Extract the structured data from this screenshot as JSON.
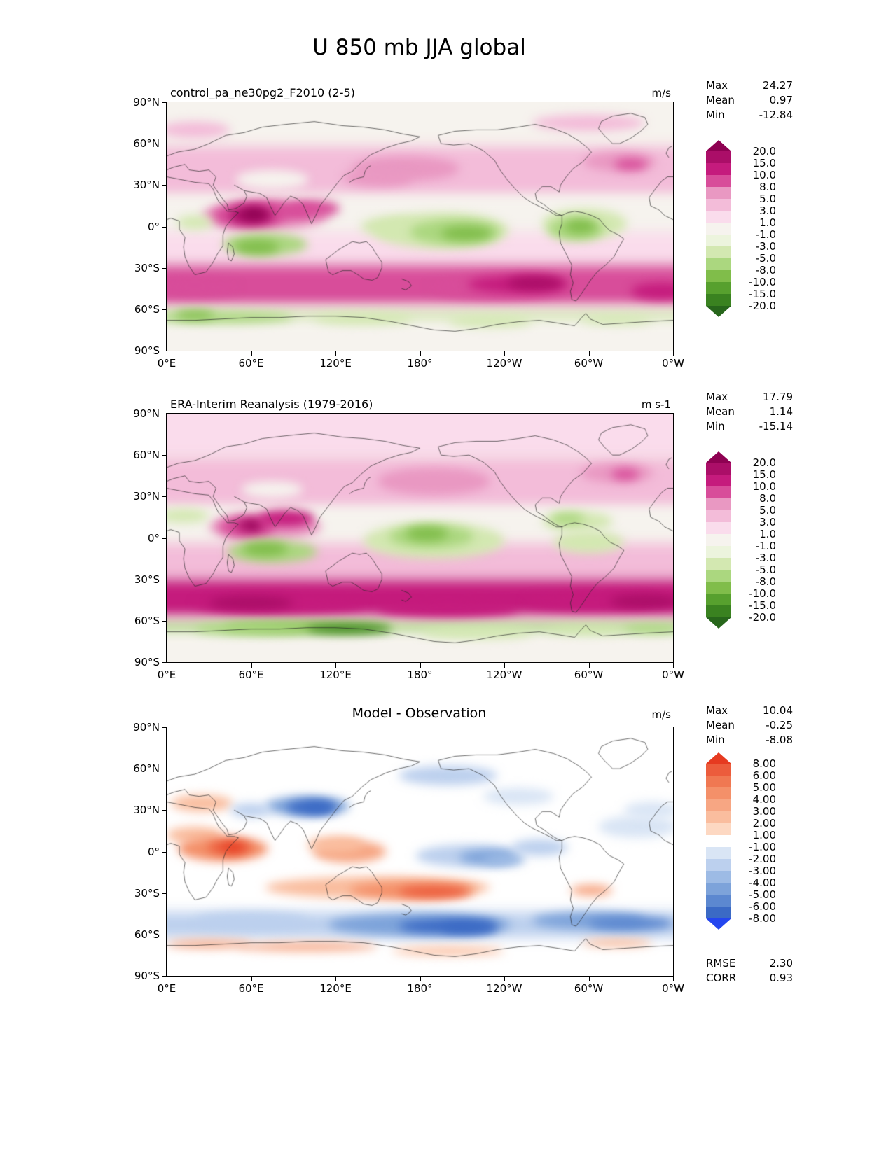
{
  "page_title": "U 850 mb JJA global",
  "axes": {
    "x_ticks": [
      "0°E",
      "60°E",
      "120°E",
      "180°",
      "120°W",
      "60°W",
      "0°W"
    ],
    "y_ticks": [
      "90°N",
      "60°N",
      "30°N",
      "0°",
      "30°S",
      "60°S",
      "90°S"
    ]
  },
  "panels": [
    {
      "title": "control_pa_ne30pg2_F2010 (2-5)",
      "units": "m/s",
      "stats": [
        {
          "label": "Max",
          "value": "24.27"
        },
        {
          "label": "Mean",
          "value": "0.97"
        },
        {
          "label": "Min",
          "value": "-12.84"
        }
      ],
      "colorbar": 0
    },
    {
      "title": "ERA-Interim Reanalysis (1979-2016)",
      "units": "m s-1",
      "stats": [
        {
          "label": "Max",
          "value": "17.79"
        },
        {
          "label": "Mean",
          "value": "1.14"
        },
        {
          "label": "Min",
          "value": "-15.14"
        }
      ],
      "colorbar": 0
    },
    {
      "title": "Model - Observation",
      "units": "m/s",
      "stats": [
        {
          "label": "Max",
          "value": "10.04"
        },
        {
          "label": "Mean",
          "value": "-0.25"
        },
        {
          "label": "Min",
          "value": "-8.08"
        }
      ],
      "colorbar": 1
    }
  ],
  "footer_stats": [
    {
      "label": "RMSE",
      "value": "2.30"
    },
    {
      "label": "CORR",
      "value": "0.93"
    }
  ],
  "colorbars": [
    {
      "labels": [
        "20.0",
        "15.0",
        "10.0",
        "8.0",
        "5.0",
        "3.0",
        "1.0",
        "-1.0",
        "-3.0",
        "-5.0",
        "-8.0",
        "-10.0",
        "-15.0",
        "-20.0"
      ],
      "levels": [
        20,
        15,
        10,
        8,
        5,
        3,
        1,
        -1,
        -3,
        -5,
        -8,
        -10,
        -15,
        -20
      ],
      "colors": [
        "#8e0152",
        "#ab0e68",
        "#c51b7d",
        "#d84d9a",
        "#e998c2",
        "#f3bcd9",
        "#fadcec",
        "#f6f3ee",
        "#ecf4dd",
        "#d3e8b1",
        "#abd77f",
        "#80bd4a",
        "#57a02e",
        "#3a8220",
        "#27661b"
      ]
    },
    {
      "labels": [
        "8.00",
        "6.00",
        "5.00",
        "4.00",
        "3.00",
        "2.00",
        "1.00",
        "-1.00",
        "-2.00",
        "-3.00",
        "-4.00",
        "-5.00",
        "-6.00",
        "-8.00"
      ],
      "levels": [
        8,
        6,
        5,
        4,
        3,
        2,
        1,
        -1,
        -2,
        -3,
        -4,
        -5,
        -6,
        -8
      ],
      "colors": [
        "#e63a20",
        "#ec5c3c",
        "#f07852",
        "#f49069",
        "#f7a683",
        "#fabd9e",
        "#fdd8c2",
        "#ffffff",
        "#d9e5f5",
        "#bcd0ee",
        "#9dbbe5",
        "#7da3da",
        "#5c88d0",
        "#3b6ac5",
        "#2446ef"
      ]
    }
  ],
  "chart_data": [
    {
      "type": "heatmap",
      "name": "model-field",
      "title": "control_pa_ne30pg2_F2010 (2-5)",
      "units": "m/s",
      "max": 24.27,
      "mean": 0.97,
      "min": -12.84,
      "colorbar": 0,
      "base": 1,
      "features": [
        [
          "band",
          90,
          58,
          1
        ],
        [
          "band",
          58,
          22,
          4
        ],
        [
          "band",
          22,
          -4,
          1
        ],
        [
          "band",
          -4,
          -28,
          3
        ],
        [
          "band",
          -28,
          -58,
          9
        ],
        [
          "band",
          -58,
          -62,
          1
        ],
        [
          "band",
          -62,
          -70,
          -4
        ],
        [
          "band",
          -70,
          -90,
          1
        ],
        [
          "blob",
          75,
          34,
          26,
          7,
          0
        ],
        [
          "blob",
          20,
          70,
          25,
          6,
          4
        ],
        [
          "blob",
          300,
          75,
          40,
          6,
          4
        ],
        [
          "blob",
          170,
          42,
          38,
          9,
          6
        ],
        [
          "blob",
          150,
          35,
          25,
          6,
          6
        ],
        [
          "blob",
          322,
          47,
          26,
          7,
          6
        ],
        [
          "blob",
          330,
          45,
          12,
          4,
          9
        ],
        [
          "blob",
          70,
          8,
          45,
          11,
          6
        ],
        [
          "blob",
          58,
          8,
          26,
          9,
          9
        ],
        [
          "blob",
          75,
          11,
          30,
          7,
          9
        ],
        [
          "blob",
          60,
          8,
          16,
          6,
          16
        ],
        [
          "blob",
          62,
          9,
          9,
          4,
          21
        ],
        [
          "blob",
          105,
          13,
          18,
          6,
          9
        ],
        [
          "blob",
          20,
          3,
          13,
          5,
          -4
        ],
        [
          "blob",
          70,
          -13,
          30,
          8,
          -6
        ],
        [
          "blob",
          64,
          -15,
          16,
          5,
          -9
        ],
        [
          "blob",
          160,
          0,
          22,
          7,
          -4
        ],
        [
          "blob",
          195,
          -3,
          48,
          13,
          -4
        ],
        [
          "blob",
          205,
          -4,
          32,
          9,
          -6
        ],
        [
          "blob",
          213,
          -5,
          18,
          5,
          -9
        ],
        [
          "blob",
          297,
          2,
          30,
          11,
          -4
        ],
        [
          "blob",
          291,
          -2,
          20,
          8,
          -6
        ],
        [
          "blob",
          294,
          0,
          11,
          5,
          -9
        ],
        [
          "blob",
          20,
          -44,
          30,
          6,
          9
        ],
        [
          "blob",
          235,
          -44,
          48,
          8,
          9
        ],
        [
          "blob",
          250,
          -42,
          36,
          6,
          11
        ],
        [
          "blob",
          262,
          -41,
          20,
          5,
          16
        ],
        [
          "blob",
          352,
          -47,
          22,
          6,
          11
        ],
        [
          "blob",
          40,
          -66,
          50,
          4,
          -6
        ],
        [
          "blob",
          20,
          -64,
          14,
          3,
          -9
        ],
        [
          "blob",
          140,
          -67,
          35,
          4,
          -4
        ],
        [
          "blob",
          230,
          -69,
          30,
          4,
          -4
        ],
        [
          "blob",
          320,
          -68,
          25,
          3,
          -4
        ]
      ]
    },
    {
      "type": "heatmap",
      "name": "era-interim-field",
      "title": "ERA-Interim Reanalysis (1979-2016)",
      "units": "m s-1",
      "max": 17.79,
      "mean": 1.14,
      "min": -15.14,
      "colorbar": 0,
      "base": 1,
      "features": [
        [
          "band",
          90,
          58,
          2
        ],
        [
          "band",
          58,
          22,
          4
        ],
        [
          "band",
          22,
          -4,
          1
        ],
        [
          "band",
          -4,
          -30,
          4
        ],
        [
          "band",
          -30,
          -58,
          11
        ],
        [
          "band",
          -58,
          -62,
          2
        ],
        [
          "band",
          -62,
          -70,
          -6
        ],
        [
          "band",
          -70,
          -90,
          1
        ],
        [
          "blob",
          75,
          35,
          22,
          6,
          0
        ],
        [
          "blob",
          190,
          41,
          40,
          10,
          6
        ],
        [
          "blob",
          320,
          47,
          26,
          7,
          6
        ],
        [
          "blob",
          326,
          46,
          10,
          4,
          9
        ],
        [
          "blob",
          70,
          8,
          40,
          10,
          6
        ],
        [
          "blob",
          57,
          8,
          20,
          8,
          9
        ],
        [
          "blob",
          59,
          9,
          10,
          4,
          16
        ],
        [
          "blob",
          61,
          9,
          5,
          2,
          21
        ],
        [
          "blob",
          85,
          14,
          20,
          6,
          11
        ],
        [
          "blob",
          12,
          16,
          18,
          5,
          -4
        ],
        [
          "blob",
          292,
          12,
          25,
          7,
          -4
        ],
        [
          "blob",
          285,
          14,
          12,
          4,
          -6
        ],
        [
          "blob",
          190,
          -2,
          50,
          13,
          -4
        ],
        [
          "blob",
          188,
          1,
          30,
          8,
          -6
        ],
        [
          "blob",
          185,
          3,
          15,
          5,
          -9
        ],
        [
          "blob",
          75,
          -10,
          32,
          8,
          -6
        ],
        [
          "blob",
          70,
          -8,
          16,
          5,
          -9
        ],
        [
          "blob",
          300,
          -3,
          25,
          8,
          -4
        ],
        [
          "blob",
          80,
          -48,
          60,
          6,
          13
        ],
        [
          "blob",
          60,
          -47,
          30,
          5,
          16
        ],
        [
          "blob",
          200,
          -51,
          50,
          6,
          11
        ],
        [
          "blob",
          300,
          -46,
          45,
          6,
          13
        ],
        [
          "blob",
          340,
          -46,
          25,
          5,
          16
        ],
        [
          "blob",
          100,
          -65,
          60,
          4,
          -9
        ],
        [
          "blob",
          130,
          -66,
          30,
          3,
          -16
        ],
        [
          "blob",
          60,
          -66,
          40,
          4,
          -6
        ],
        [
          "blob",
          220,
          -69,
          40,
          4,
          -4
        ],
        [
          "blob",
          300,
          -67,
          30,
          3,
          -4
        ],
        [
          "blob",
          345,
          -66,
          20,
          3,
          -6
        ]
      ]
    },
    {
      "type": "heatmap",
      "name": "model-minus-observation-field",
      "title": "Model - Observation",
      "units": "m/s",
      "max": 10.04,
      "mean": -0.25,
      "min": -8.08,
      "rmse": 2.3,
      "corr": 0.93,
      "colorbar": 1,
      "base": 0,
      "features": [
        [
          "band",
          -44,
          -62,
          -2.5
        ],
        [
          "blob",
          25,
          35,
          22,
          6,
          2.5
        ],
        [
          "blob",
          20,
          12,
          20,
          6,
          2.5
        ],
        [
          "blob",
          40,
          2,
          32,
          9,
          4.5
        ],
        [
          "blob",
          45,
          3,
          16,
          5,
          6.5
        ],
        [
          "blob",
          47,
          3,
          8,
          3,
          9
        ],
        [
          "blob",
          130,
          0,
          26,
          8,
          3.5
        ],
        [
          "blob",
          120,
          5,
          20,
          6,
          2.5
        ],
        [
          "blob",
          150,
          -26,
          80,
          8,
          2.5
        ],
        [
          "blob",
          175,
          -28,
          45,
          6,
          4.5
        ],
        [
          "blob",
          190,
          -29,
          25,
          4,
          6.5
        ],
        [
          "blob",
          302,
          -28,
          15,
          4,
          3.5
        ],
        [
          "blob",
          100,
          -69,
          50,
          3,
          3.5
        ],
        [
          "blob",
          200,
          -72,
          40,
          3,
          2.5
        ],
        [
          "blob",
          320,
          -66,
          25,
          3,
          2.5
        ],
        [
          "blob",
          30,
          -67,
          30,
          3,
          3.5
        ],
        [
          "blob",
          100,
          33,
          30,
          7,
          -4.5
        ],
        [
          "blob",
          103,
          32,
          18,
          5,
          -6.5
        ],
        [
          "blob",
          108,
          32,
          10,
          3,
          -7
        ],
        [
          "blob",
          60,
          30,
          15,
          5,
          -2.5
        ],
        [
          "blob",
          215,
          -3,
          38,
          8,
          -2.5
        ],
        [
          "blob",
          228,
          -4,
          20,
          5,
          -4.5
        ],
        [
          "blob",
          240,
          -6,
          15,
          4,
          -3.5
        ],
        [
          "blob",
          265,
          3,
          20,
          6,
          -2.5
        ],
        [
          "blob",
          180,
          -53,
          65,
          8,
          -4.5
        ],
        [
          "blob",
          200,
          -54,
          35,
          5,
          -6.5
        ],
        [
          "blob",
          215,
          -55,
          20,
          4,
          -7
        ],
        [
          "blob",
          300,
          -50,
          40,
          6,
          -4.5
        ],
        [
          "blob",
          330,
          -52,
          30,
          5,
          -5.5
        ],
        [
          "blob",
          60,
          -50,
          40,
          6,
          -2.5
        ],
        [
          "blob",
          200,
          55,
          35,
          7,
          -2.5
        ],
        [
          "blob",
          335,
          18,
          28,
          8,
          -1.5
        ],
        [
          "blob",
          345,
          30,
          20,
          6,
          -1.5
        ],
        [
          "blob",
          250,
          40,
          25,
          6,
          -1.5
        ]
      ]
    }
  ]
}
